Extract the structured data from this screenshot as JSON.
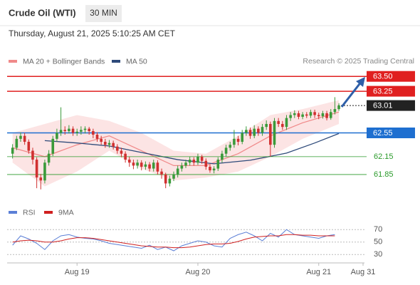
{
  "header": {
    "title": "Crude Oil (WTI)",
    "interval": "30 MIN",
    "timestamp": "Thursday, August 21, 2025 5:10:25 AM CET"
  },
  "chart_data": [
    {
      "type": "candlestick",
      "source": "Research © 2025 Trading Central",
      "up_color": "#3a9a3a",
      "down_color": "#d03030",
      "xlim": [
        -1,
        87
      ],
      "ylim": [
        61.37,
        63.73
      ],
      "open": [
        62.2,
        62.3,
        62.45,
        62.5,
        62.4,
        62.25,
        62.1,
        61.8,
        61.75,
        62.05,
        62.2,
        62.45,
        62.55,
        62.6,
        62.58,
        62.62,
        62.55,
        62.57,
        62.6,
        62.62,
        62.58,
        62.52,
        62.45,
        62.4,
        62.35,
        62.38,
        62.32,
        62.25,
        62.2,
        62.1,
        62.05,
        62.0,
        62.05,
        61.98,
        62.02,
        61.95,
        62.05,
        61.9,
        61.85,
        61.7,
        61.78,
        61.85,
        61.95,
        62.0,
        62.05,
        62.1,
        62.05,
        62.15,
        62.08,
        61.98,
        61.92,
        61.95,
        62.1,
        62.2,
        62.3,
        62.35,
        62.45,
        62.4,
        62.55,
        62.6,
        62.5,
        62.62,
        62.55,
        62.65,
        62.7,
        62.35,
        62.75,
        62.7,
        62.65,
        62.8,
        62.85,
        62.88,
        62.82,
        62.86,
        62.84,
        62.9,
        62.85,
        62.83,
        62.88,
        62.8,
        62.9,
        62.95
      ],
      "high": [
        62.36,
        62.5,
        62.56,
        62.55,
        62.44,
        62.3,
        62.14,
        61.86,
        62.1,
        62.26,
        62.5,
        62.62,
        62.98,
        62.66,
        62.68,
        62.66,
        62.62,
        62.66,
        62.66,
        62.65,
        62.62,
        62.56,
        62.5,
        62.45,
        62.43,
        62.42,
        62.36,
        62.3,
        62.24,
        62.15,
        62.1,
        62.1,
        62.09,
        62.07,
        62.06,
        62.1,
        62.09,
        61.95,
        61.88,
        61.83,
        61.9,
        62.0,
        62.05,
        62.1,
        62.15,
        62.14,
        62.2,
        62.18,
        62.12,
        62.02,
        61.99,
        62.14,
        62.25,
        62.35,
        62.4,
        62.6,
        62.5,
        62.6,
        62.66,
        62.64,
        62.68,
        62.66,
        62.7,
        62.76,
        62.74,
        62.8,
        62.8,
        62.75,
        62.85,
        62.9,
        62.93,
        62.92,
        62.9,
        62.9,
        62.94,
        62.94,
        62.89,
        62.92,
        62.92,
        62.95,
        63.15,
        63.05
      ],
      "low": [
        62.12,
        62.26,
        62.4,
        62.35,
        62.2,
        62.02,
        61.62,
        61.6,
        61.7,
        62.0,
        62.16,
        62.4,
        62.5,
        62.52,
        62.54,
        62.5,
        62.5,
        62.52,
        62.54,
        62.52,
        62.46,
        62.4,
        62.35,
        62.3,
        62.3,
        62.27,
        62.2,
        62.14,
        62.05,
        61.98,
        61.94,
        61.95,
        61.92,
        61.93,
        61.9,
        61.9,
        61.85,
        61.78,
        61.62,
        61.65,
        61.74,
        61.8,
        61.9,
        61.96,
        62.0,
        62.0,
        62.01,
        62.03,
        61.93,
        61.88,
        61.87,
        61.91,
        62.05,
        62.15,
        62.25,
        62.3,
        62.34,
        62.36,
        62.5,
        62.45,
        62.46,
        62.5,
        62.5,
        62.6,
        62.15,
        62.3,
        62.65,
        62.6,
        62.6,
        62.75,
        62.8,
        62.78,
        62.78,
        62.8,
        62.8,
        62.8,
        62.78,
        62.79,
        62.76,
        62.77,
        62.86,
        62.92
      ],
      "close": [
        62.3,
        62.45,
        62.5,
        62.4,
        62.25,
        62.1,
        61.8,
        61.75,
        62.05,
        62.2,
        62.45,
        62.55,
        62.6,
        62.58,
        62.62,
        62.55,
        62.57,
        62.6,
        62.62,
        62.58,
        62.52,
        62.45,
        62.4,
        62.35,
        62.38,
        62.32,
        62.25,
        62.2,
        62.1,
        62.05,
        62.0,
        62.05,
        61.98,
        62.02,
        61.95,
        62.05,
        61.9,
        61.85,
        61.7,
        61.78,
        61.85,
        61.95,
        62.0,
        62.05,
        62.1,
        62.05,
        62.15,
        62.08,
        61.98,
        61.92,
        61.95,
        62.1,
        62.2,
        62.3,
        62.35,
        62.45,
        62.4,
        62.55,
        62.6,
        62.5,
        62.62,
        62.55,
        62.65,
        62.7,
        62.35,
        62.75,
        62.7,
        62.65,
        62.8,
        62.85,
        62.88,
        62.82,
        62.86,
        62.84,
        62.9,
        62.85,
        62.83,
        62.88,
        62.8,
        62.9,
        62.95,
        63.01
      ],
      "overlays": [
        {
          "name": "MA 20 + Bollinger Bands",
          "color": "#f08a8a",
          "band_color": "#fbd9d9",
          "x": [
            0,
            8,
            16,
            24,
            32,
            40,
            48,
            56,
            64,
            72,
            81
          ],
          "values": [
            62.3,
            62.15,
            62.35,
            62.5,
            62.25,
            62.0,
            62.0,
            62.2,
            62.5,
            62.72,
            62.9
          ],
          "upper": [
            62.55,
            62.7,
            62.85,
            62.75,
            62.55,
            62.25,
            62.2,
            62.5,
            62.85,
            62.95,
            63.1
          ],
          "lower": [
            62.05,
            61.65,
            61.9,
            62.25,
            61.95,
            61.75,
            61.8,
            61.9,
            62.15,
            62.45,
            62.7
          ]
        },
        {
          "name": "MA 50",
          "color": "#2e4a7a",
          "x": [
            8,
            16,
            24,
            32,
            41,
            50,
            59,
            68,
            75,
            81
          ],
          "values": [
            62.42,
            62.38,
            62.33,
            62.22,
            62.1,
            62.03,
            62.09,
            62.21,
            62.38,
            62.54
          ]
        }
      ],
      "levels": [
        {
          "value": 63.5,
          "label": "63.50",
          "color": "#e02020",
          "style": "box"
        },
        {
          "value": 63.25,
          "color": "#e02020",
          "style": "box"
        },
        {
          "value": 63.01,
          "color": "#222222",
          "style": "current"
        },
        {
          "value": 62.55,
          "color": "#1e6fd0",
          "style": "box"
        },
        {
          "value": 62.15,
          "color": "#2a9a2a",
          "style": "text"
        },
        {
          "value": 61.85,
          "color": "#2a9a2a",
          "style": "text"
        }
      ]
    },
    {
      "type": "line",
      "xlim": [
        -1,
        87
      ],
      "ylim": [
        20,
        84
      ],
      "yticks": [
        30,
        50,
        70
      ],
      "xticks": [
        {
          "value": 16,
          "label": "Aug 19"
        },
        {
          "value": 46,
          "label": "Aug 20"
        },
        {
          "value": 76,
          "label": "Aug 21"
        },
        {
          "value": 87,
          "label": "Aug 31"
        }
      ],
      "series": [
        {
          "name": "RSI",
          "color": "#5b7fd6",
          "x": [
            0,
            2,
            4,
            6,
            8,
            10,
            12,
            14,
            16,
            18,
            20,
            22,
            24,
            26,
            28,
            30,
            32,
            34,
            36,
            38,
            40,
            42,
            44,
            46,
            48,
            50,
            52,
            54,
            56,
            58,
            60,
            62,
            64,
            66,
            68,
            70,
            72,
            74,
            76,
            78,
            80
          ],
          "values": [
            45,
            60,
            55,
            48,
            38,
            52,
            60,
            62,
            58,
            56,
            55,
            52,
            48,
            46,
            44,
            42,
            40,
            45,
            38,
            42,
            36,
            44,
            48,
            52,
            50,
            44,
            42,
            56,
            62,
            66,
            60,
            52,
            64,
            58,
            70,
            62,
            60,
            58,
            56,
            60,
            62
          ]
        },
        {
          "name": "9MA",
          "color": "#d02020",
          "x": [
            0,
            2,
            4,
            6,
            8,
            10,
            12,
            14,
            16,
            18,
            20,
            22,
            24,
            26,
            28,
            30,
            32,
            34,
            36,
            38,
            40,
            42,
            44,
            46,
            48,
            50,
            52,
            54,
            56,
            58,
            60,
            62,
            64,
            66,
            68,
            70,
            72,
            74,
            76,
            78,
            80
          ],
          "values": [
            50,
            52,
            53,
            52,
            50,
            50,
            52,
            55,
            57,
            57,
            56,
            54,
            52,
            50,
            48,
            46,
            44,
            43,
            42,
            42,
            41,
            41,
            42,
            44,
            46,
            47,
            47,
            48,
            51,
            55,
            58,
            59,
            60,
            60,
            62,
            62,
            61,
            61,
            60,
            60,
            60
          ]
        }
      ]
    }
  ]
}
